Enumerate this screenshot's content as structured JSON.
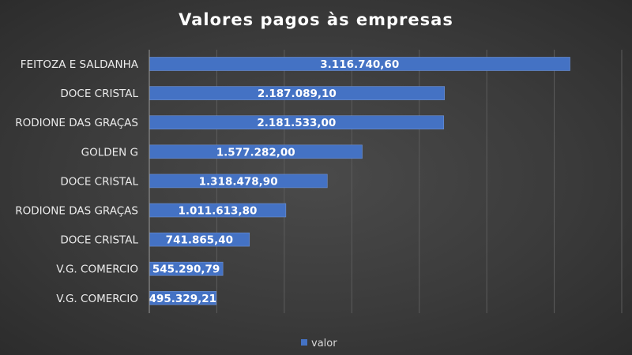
{
  "chart_data": {
    "type": "bar",
    "orientation": "horizontal",
    "title": "Valores pagos às empresas",
    "categories": [
      "FEITOZA E SALDANHA",
      "DOCE CRISTAL",
      "RODIONE DAS GRAÇAS",
      "GOLDEN G",
      "DOCE CRISTAL",
      "RODIONE DAS GRAÇAS",
      "DOCE CRISTAL",
      "V.G. COMERCIO",
      "V.G. COMERCIO"
    ],
    "series": [
      {
        "name": "valor",
        "color": "#4472c4",
        "values": [
          3116740.6,
          2187089.1,
          2181533.0,
          1577282.0,
          1318478.9,
          1011613.8,
          741865.4,
          545290.79,
          495329.21
        ],
        "labels": [
          "3.116.740,60",
          "2.187.089,10",
          "2.181.533,00",
          "1.577.282,00",
          "1.318.478,90",
          "1.011.613,80",
          "741.865,40",
          "545.290,79",
          "495.329,21"
        ]
      }
    ],
    "xlim": [
      0,
      3500000
    ],
    "xgrid_step": 500000,
    "grid": true,
    "legend": "bottom",
    "value_labels": "inside-end"
  }
}
